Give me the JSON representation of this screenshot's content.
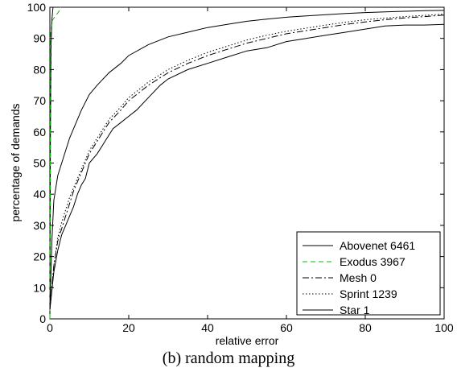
{
  "chart_data": {
    "type": "line",
    "caption": "(b) random mapping",
    "xlabel": "relative error",
    "ylabel": "percentage of demands",
    "xlim": [
      0,
      100
    ],
    "ylim": [
      0,
      100
    ],
    "x_ticks": [
      0,
      20,
      40,
      60,
      80,
      100
    ],
    "y_ticks": [
      0,
      10,
      20,
      30,
      40,
      50,
      60,
      70,
      80,
      90,
      100
    ],
    "grid": false,
    "legend_position": "bottom-right",
    "series": [
      {
        "name": "Abovenet 6461",
        "color": "#000000",
        "style": "solid",
        "x": [
          0,
          0.15,
          0.3,
          0.5,
          0.8
        ],
        "y": [
          0,
          60,
          88,
          96,
          100
        ]
      },
      {
        "name": "Exodus 3967",
        "color": "#00c000",
        "style": "dashed",
        "x": [
          0,
          0.2,
          0.5,
          1,
          1.6,
          2.2,
          2.8
        ],
        "y": [
          0,
          92,
          95.5,
          96.5,
          97.5,
          98.5,
          100
        ]
      },
      {
        "name": "Mesh 0",
        "color": "#000000",
        "style": "dashdot",
        "x": [
          0,
          1,
          2,
          3,
          4,
          5,
          6,
          8,
          10,
          12,
          15,
          18,
          20,
          25,
          30,
          35,
          40,
          45,
          50,
          55,
          60,
          65,
          70,
          75,
          80,
          85,
          90,
          95,
          100
        ],
        "y": [
          3,
          17,
          25,
          29,
          33,
          37,
          41,
          47,
          53,
          57,
          63,
          67,
          70,
          75,
          79,
          82,
          84.5,
          86.5,
          88.5,
          90,
          91.5,
          92.5,
          93.5,
          94.5,
          95.3,
          96,
          96.6,
          97,
          97.5
        ]
      },
      {
        "name": "Sprint 1239",
        "color": "#000000",
        "style": "dotted",
        "x": [
          0,
          1,
          2,
          3,
          5,
          8,
          10,
          12,
          15,
          18,
          20,
          25,
          30,
          35,
          40,
          45,
          50,
          55,
          60,
          65,
          70,
          75,
          80,
          85,
          90,
          95,
          100
        ],
        "y": [
          3,
          17,
          26,
          31,
          39,
          48,
          54,
          58,
          64,
          68,
          71,
          76,
          80,
          83,
          85.5,
          87.5,
          89.5,
          91,
          92.3,
          93.3,
          94.3,
          95.2,
          96,
          96.5,
          97,
          97.4,
          97.8
        ]
      },
      {
        "name": "Star 1",
        "color": "#000000",
        "style": "solid",
        "x": [
          0,
          1,
          2,
          3,
          4,
          5,
          6,
          7,
          8,
          9,
          10,
          12,
          14,
          16,
          18,
          20,
          22,
          25,
          28,
          30,
          35,
          40,
          45,
          50,
          55,
          60,
          65,
          70,
          75,
          80,
          85,
          90,
          95,
          100
        ],
        "y": [
          3,
          15,
          22,
          27,
          30,
          33,
          36,
          40,
          43,
          45,
          50,
          53,
          57,
          61,
          63,
          65,
          67,
          71,
          75,
          77,
          80,
          82,
          84,
          86,
          87,
          89,
          90,
          91,
          92,
          93,
          94,
          94.3,
          94.3,
          94.5
        ]
      },
      {
        "name": "",
        "color": "#000000",
        "style": "solid",
        "x": [
          0,
          0.5,
          1,
          2,
          3,
          4,
          5,
          6,
          8,
          10,
          12,
          15,
          18,
          20,
          25,
          30,
          35,
          40,
          45,
          50,
          55,
          60,
          65,
          70,
          75,
          80,
          85,
          90,
          95,
          100
        ],
        "y": [
          3,
          25,
          38,
          46,
          50,
          54,
          58,
          61,
          67,
          72,
          75,
          79,
          82,
          84.5,
          88,
          90.5,
          92,
          93.5,
          94.5,
          95.5,
          96.2,
          96.8,
          97.2,
          97.6,
          98,
          98.3,
          98.5,
          98.7,
          98.9,
          99
        ]
      }
    ]
  }
}
